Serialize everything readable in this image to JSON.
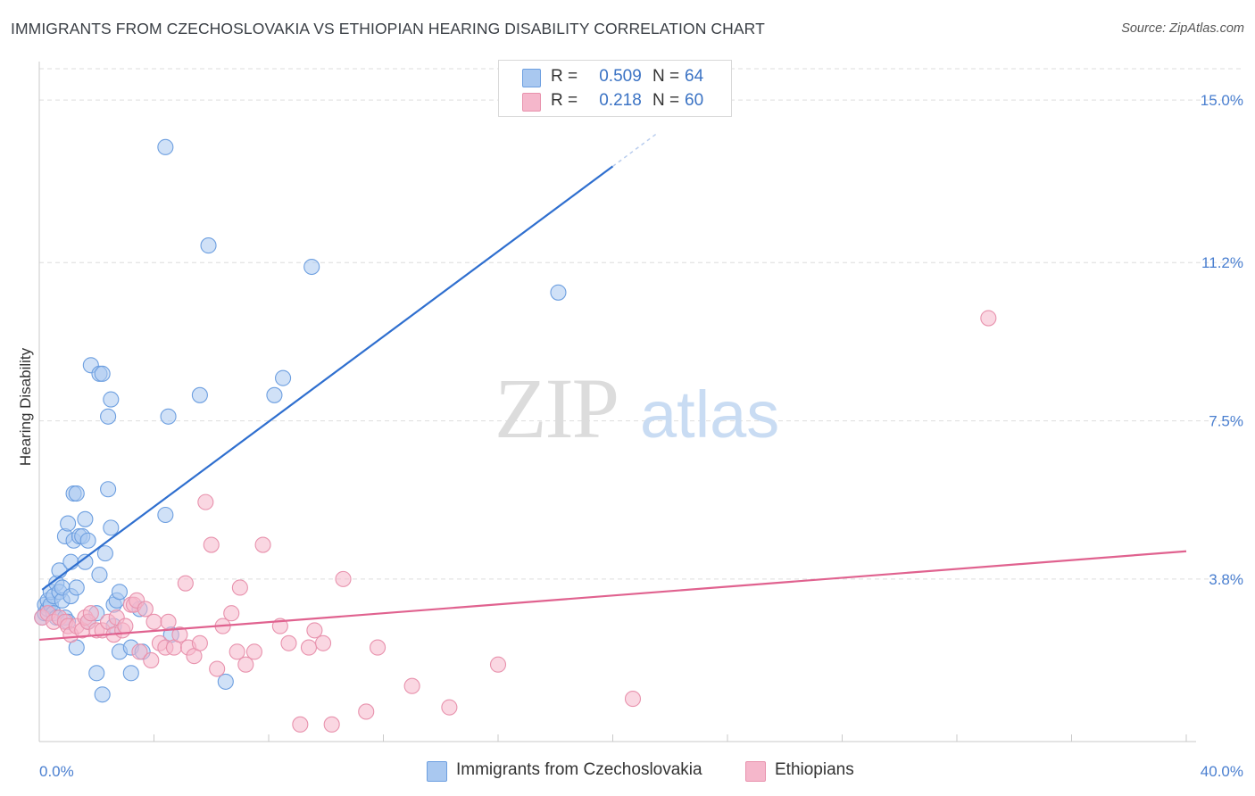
{
  "title": "IMMIGRANTS FROM CZECHOSLOVAKIA VS ETHIOPIAN HEARING DISABILITY CORRELATION CHART",
  "source": "Source: ZipAtlas.com",
  "watermark": {
    "zip": "ZIP",
    "atlas": "atlas"
  },
  "legend": {
    "r_label": "R =",
    "n_label": "N =",
    "rows": [
      {
        "r": "0.509",
        "n": "64"
      },
      {
        "r": "0.218",
        "n": "60"
      }
    ]
  },
  "colors": {
    "blue_fill": "#a9c8f0",
    "blue_stroke": "#6d9fe0",
    "blue_line": "#2f6fcf",
    "pink_fill": "#f5b7cb",
    "pink_stroke": "#e892ad",
    "pink_line": "#e0628f",
    "axis_text": "#4a7fd0",
    "grid": "#dedede"
  },
  "chart_data": {
    "type": "scatter",
    "title": "IMMIGRANTS FROM CZECHOSLOVAKIA VS ETHIOPIAN HEARING DISABILITY CORRELATION CHART",
    "xlabel": "",
    "ylabel": "Hearing Disability",
    "xlim": [
      0,
      40
    ],
    "ylim": [
      0,
      15.9
    ],
    "x_tick_labels": [
      "0.0%",
      "40.0%"
    ],
    "y_ticks": [
      {
        "value": 3.8,
        "label": "3.8%"
      },
      {
        "value": 7.5,
        "label": "7.5%"
      },
      {
        "value": 11.2,
        "label": "11.2%"
      },
      {
        "value": 15.0,
        "label": "15.0%"
      }
    ],
    "grid": "horizontal-dashed",
    "legend_position": "bottom",
    "series": [
      {
        "name": "Immigrants from Czechoslovakia",
        "color": "#a9c8f0",
        "trend": {
          "x": [
            0.1,
            20.0
          ],
          "y": [
            3.55,
            13.45
          ],
          "dashed_to": [
            21.5,
            14.2
          ]
        },
        "points": [
          [
            0.1,
            2.9
          ],
          [
            0.2,
            3.0
          ],
          [
            0.2,
            3.2
          ],
          [
            0.3,
            3.1
          ],
          [
            0.3,
            3.3
          ],
          [
            0.4,
            3.2
          ],
          [
            0.4,
            3.5
          ],
          [
            0.5,
            3.0
          ],
          [
            0.5,
            3.4
          ],
          [
            0.6,
            3.7
          ],
          [
            0.6,
            2.9
          ],
          [
            0.7,
            3.5
          ],
          [
            0.7,
            4.0
          ],
          [
            0.8,
            3.3
          ],
          [
            0.8,
            3.6
          ],
          [
            0.9,
            4.8
          ],
          [
            0.9,
            2.9
          ],
          [
            1.0,
            5.1
          ],
          [
            1.0,
            2.8
          ],
          [
            1.1,
            4.2
          ],
          [
            1.1,
            3.4
          ],
          [
            1.2,
            5.8
          ],
          [
            1.2,
            4.7
          ],
          [
            1.3,
            3.6
          ],
          [
            1.3,
            5.8
          ],
          [
            1.3,
            2.2
          ],
          [
            1.4,
            4.8
          ],
          [
            1.5,
            4.8
          ],
          [
            1.6,
            5.2
          ],
          [
            1.6,
            4.2
          ],
          [
            1.7,
            2.8
          ],
          [
            1.7,
            4.7
          ],
          [
            1.8,
            8.8
          ],
          [
            2.0,
            3.0
          ],
          [
            2.0,
            1.6
          ],
          [
            2.1,
            8.6
          ],
          [
            2.1,
            3.9
          ],
          [
            2.2,
            8.6
          ],
          [
            2.2,
            1.1
          ],
          [
            2.3,
            4.4
          ],
          [
            2.4,
            5.9
          ],
          [
            2.4,
            7.6
          ],
          [
            2.5,
            8.0
          ],
          [
            2.5,
            5.0
          ],
          [
            2.6,
            3.2
          ],
          [
            2.6,
            2.7
          ],
          [
            2.7,
            3.3
          ],
          [
            2.8,
            2.1
          ],
          [
            2.8,
            3.5
          ],
          [
            3.2,
            1.6
          ],
          [
            3.2,
            2.2
          ],
          [
            3.5,
            3.1
          ],
          [
            3.6,
            2.1
          ],
          [
            4.4,
            5.3
          ],
          [
            4.4,
            13.9
          ],
          [
            4.5,
            7.6
          ],
          [
            4.6,
            2.5
          ],
          [
            5.6,
            8.1
          ],
          [
            5.9,
            11.6
          ],
          [
            6.5,
            1.4
          ],
          [
            8.2,
            8.1
          ],
          [
            8.5,
            8.5
          ],
          [
            9.5,
            11.1
          ],
          [
            18.1,
            10.5
          ]
        ]
      },
      {
        "name": "Ethiopians",
        "color": "#f5b7cb",
        "trend": {
          "x": [
            0.0,
            40.0
          ],
          "y": [
            2.38,
            4.45
          ]
        },
        "points": [
          [
            0.1,
            2.9
          ],
          [
            0.3,
            3.0
          ],
          [
            0.5,
            2.8
          ],
          [
            0.7,
            2.9
          ],
          [
            0.9,
            2.8
          ],
          [
            1.0,
            2.7
          ],
          [
            1.1,
            2.5
          ],
          [
            1.3,
            2.7
          ],
          [
            1.5,
            2.6
          ],
          [
            1.6,
            2.9
          ],
          [
            1.7,
            2.8
          ],
          [
            1.8,
            3.0
          ],
          [
            2.0,
            2.6
          ],
          [
            2.2,
            2.6
          ],
          [
            2.4,
            2.8
          ],
          [
            2.6,
            2.5
          ],
          [
            2.7,
            2.9
          ],
          [
            2.9,
            2.6
          ],
          [
            3.0,
            2.7
          ],
          [
            3.2,
            3.2
          ],
          [
            3.3,
            3.2
          ],
          [
            3.4,
            3.3
          ],
          [
            3.5,
            2.1
          ],
          [
            3.7,
            3.1
          ],
          [
            3.9,
            1.9
          ],
          [
            4.0,
            2.8
          ],
          [
            4.2,
            2.3
          ],
          [
            4.4,
            2.2
          ],
          [
            4.5,
            2.8
          ],
          [
            4.7,
            2.2
          ],
          [
            4.9,
            2.5
          ],
          [
            5.1,
            3.7
          ],
          [
            5.2,
            2.2
          ],
          [
            5.4,
            2.0
          ],
          [
            5.6,
            2.3
          ],
          [
            5.8,
            5.6
          ],
          [
            6.0,
            4.6
          ],
          [
            6.2,
            1.7
          ],
          [
            6.4,
            2.7
          ],
          [
            6.7,
            3.0
          ],
          [
            6.9,
            2.1
          ],
          [
            7.0,
            3.6
          ],
          [
            7.2,
            1.8
          ],
          [
            7.5,
            2.1
          ],
          [
            7.8,
            4.6
          ],
          [
            8.4,
            2.7
          ],
          [
            8.7,
            2.3
          ],
          [
            9.1,
            0.4
          ],
          [
            9.4,
            2.2
          ],
          [
            9.6,
            2.6
          ],
          [
            9.9,
            2.3
          ],
          [
            10.2,
            0.4
          ],
          [
            10.6,
            3.8
          ],
          [
            11.4,
            0.7
          ],
          [
            11.8,
            2.2
          ],
          [
            13.0,
            1.3
          ],
          [
            14.3,
            0.8
          ],
          [
            16.0,
            1.8
          ],
          [
            20.7,
            1.0
          ],
          [
            33.1,
            9.9
          ]
        ]
      }
    ]
  }
}
